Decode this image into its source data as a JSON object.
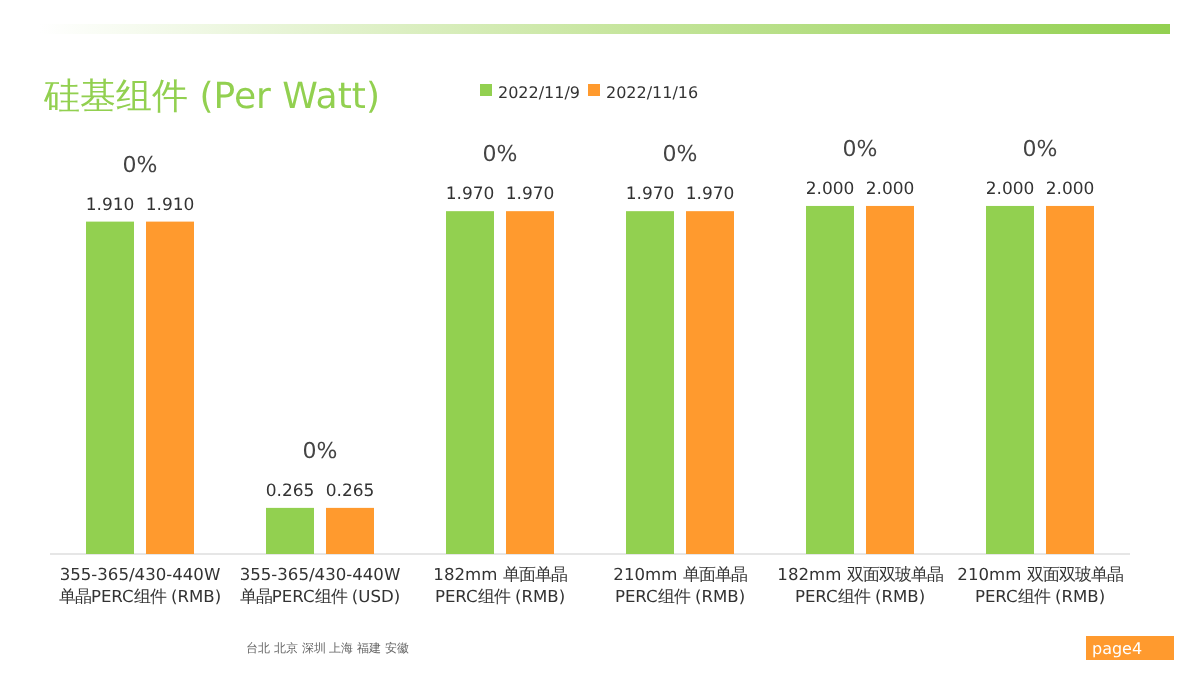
{
  "chart_data": {
    "type": "bar",
    "title": "硅基组件 (Per Watt)",
    "categories": [
      "355-365/430-440W\n单晶PERC组件 (RMB)",
      "355-365/430-440W\n单晶PERC组件 (USD)",
      "182mm 单面单晶\nPERC组件 (RMB)",
      "210mm 单面单晶\nPERC组件 (RMB)",
      "182mm 双面双玻单晶\nPERC组件 (RMB)",
      "210mm 双面双玻单晶\nPERC组件 (RMB)"
    ],
    "series": [
      {
        "name": "2022/11/9",
        "color": "#92d050",
        "values": [
          1.91,
          0.265,
          1.97,
          1.97,
          2.0,
          2.0
        ],
        "value_labels": [
          "1.910",
          "0.265",
          "1.970",
          "1.970",
          "2.000",
          "2.000"
        ]
      },
      {
        "name": "2022/11/16",
        "color": "#ff9a2e",
        "values": [
          1.91,
          0.265,
          1.97,
          1.97,
          2.0,
          2.0
        ],
        "value_labels": [
          "1.910",
          "0.265",
          "1.970",
          "1.970",
          "2.000",
          "2.000"
        ]
      }
    ],
    "annotations": [
      "0%",
      "0%",
      "0%",
      "0%",
      "0%",
      "0%",
      "台北  北京  深圳  上海  福建  安徽",
      "page4"
    ],
    "legend": "top"
  }
}
